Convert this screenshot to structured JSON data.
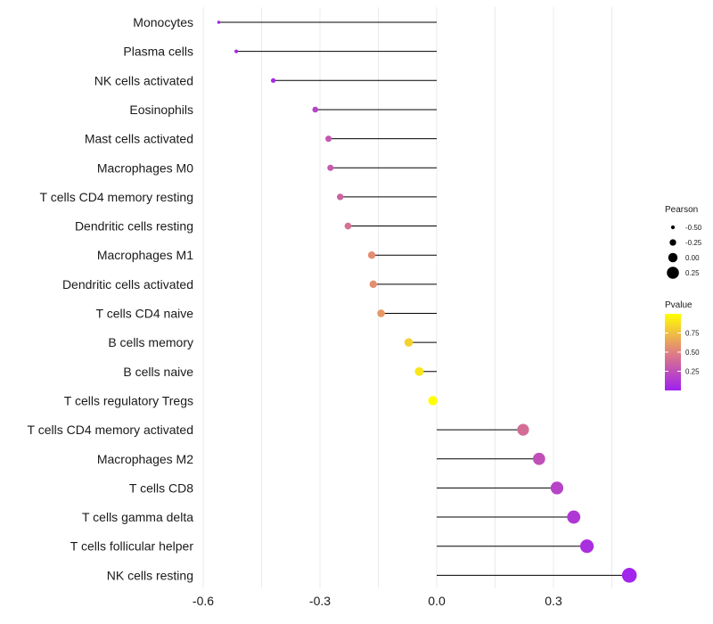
{
  "chart_data": {
    "type": "lollipop",
    "title": "",
    "xlabel": "",
    "ylabel": "",
    "xlim": [
      -0.6,
      0.5
    ],
    "x_ticks": [
      -0.6,
      -0.3,
      0.0,
      0.3
    ],
    "x_tick_labels": [
      "-0.6",
      "-0.3",
      "0.0",
      "0.3"
    ],
    "grid": true,
    "baseline": 0.0,
    "categories": [
      "Monocytes",
      "Plasma cells",
      "NK cells activated",
      "Eosinophils",
      "Mast cells activated",
      "Macrophages M0",
      "T cells CD4 memory resting",
      "Dendritic cells resting",
      "Macrophages M1",
      "Dendritic cells activated",
      "T cells CD4 naive",
      "B cells memory",
      "B cells naive",
      "T cells regulatory  Tregs ",
      "T cells CD4 memory activated",
      "Macrophages M2",
      "T cells CD8",
      "T cells gamma delta",
      "T cells follicular helper",
      "NK cells resting"
    ],
    "pearson": [
      -0.56,
      -0.515,
      -0.42,
      -0.312,
      -0.278,
      -0.273,
      -0.248,
      -0.228,
      -0.167,
      -0.163,
      -0.143,
      -0.072,
      -0.045,
      -0.01,
      0.222,
      0.263,
      0.309,
      0.352,
      0.386,
      0.495
    ],
    "pvalue": [
      0.01,
      0.02,
      0.05,
      0.18,
      0.28,
      0.3,
      0.35,
      0.42,
      0.55,
      0.56,
      0.6,
      0.82,
      0.9,
      1.0,
      0.4,
      0.25,
      0.18,
      0.12,
      0.08,
      0.02
    ],
    "legend": {
      "size_title": "Pearson",
      "size_breaks": [
        -0.5,
        -0.25,
        0.0,
        0.25
      ],
      "size_labels": [
        "-0.50",
        "-0.25",
        "0.00",
        "0.25"
      ],
      "color_title": "Pvalue",
      "color_breaks": [
        0.25,
        0.5,
        0.75
      ],
      "color_labels": [
        "0.25",
        "0.50",
        "0.75"
      ],
      "color_low": "#a020f0",
      "color_mid": "#e08080",
      "color_high": "#ffff00",
      "position": "right"
    }
  }
}
